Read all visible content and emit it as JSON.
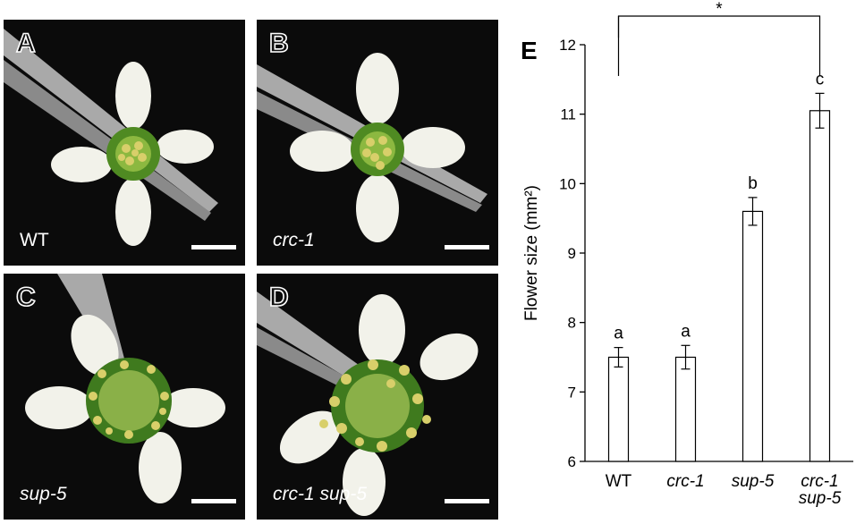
{
  "panels": [
    {
      "id": "A",
      "label": "WT",
      "italic": false
    },
    {
      "id": "B",
      "label": "crc-1",
      "italic": true
    },
    {
      "id": "C",
      "label": "sup-5",
      "italic": true
    },
    {
      "id": "D",
      "label": "crc-1 sup-5",
      "italic": true
    }
  ],
  "chart_panel_letter": "E",
  "colors": {
    "petal": "#f2f2ea",
    "petal_base": "#6aa02a",
    "stamen": "#d8cf6a",
    "tweezer": "#b8b8b8",
    "background": "#0b0b0b"
  },
  "chart_data": {
    "type": "bar",
    "categories": [
      "WT",
      "crc-1",
      "sup-5",
      "crc-1 sup-5"
    ],
    "category_lines": [
      [
        "WT"
      ],
      [
        "crc-1"
      ],
      [
        "sup-5"
      ],
      [
        "crc-1",
        "sup-5"
      ]
    ],
    "category_italic": [
      false,
      true,
      true,
      true
    ],
    "values": [
      7.5,
      7.5,
      9.6,
      11.05
    ],
    "errors": [
      0.14,
      0.17,
      0.2,
      0.25
    ],
    "group_letters": [
      "a",
      "a",
      "b",
      "c"
    ],
    "ylabel": "Flower size (mm²)",
    "ylim": [
      6,
      12
    ],
    "yticks": [
      6,
      7,
      8,
      9,
      10,
      11,
      12
    ],
    "significance": {
      "from": "WT",
      "to": "crc-1 sup-5",
      "label": "*"
    },
    "bar_fill": "#ffffff",
    "bar_stroke": "#000000"
  }
}
